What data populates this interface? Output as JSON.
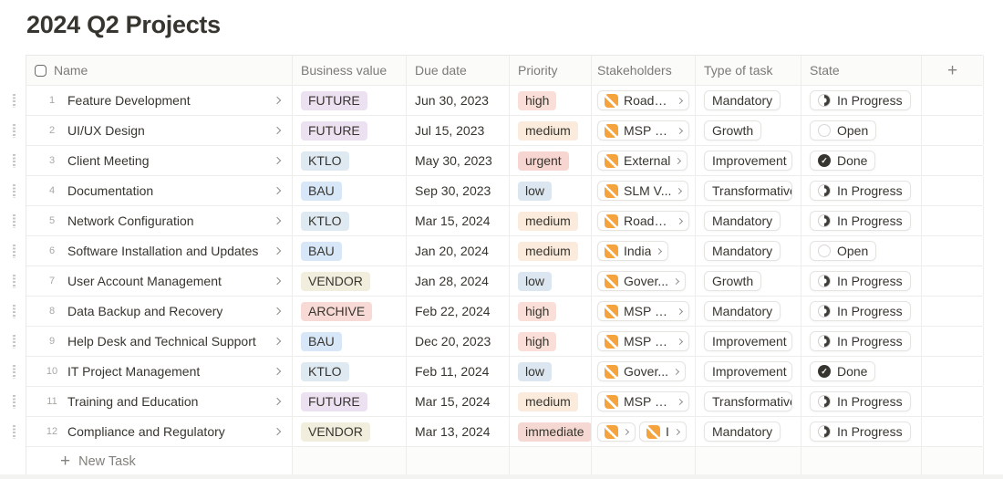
{
  "page": {
    "title": "2024 Q2 Projects"
  },
  "table": {
    "columns": [
      "Name",
      "Business value",
      "Due date",
      "Priority",
      "Stakeholders",
      "Type of task",
      "State"
    ],
    "add_column_label": "+",
    "new_task_plus": "+",
    "new_task_label": "New Task",
    "colors": {
      "text": "#37352F",
      "secondary_text": "#7C7A77",
      "border": "#E9E9E7",
      "stakeholder_icon_orange": "#F5A33C",
      "state_dark": "#373530",
      "business_value": {
        "FUTURE": "#ECE1F1",
        "KTLO": "#DFE9F1",
        "BAU": "#D7E7F8",
        "VENDOR": "#F2EEDD",
        "ARCHIVE": "#F7DAD5"
      },
      "priority": {
        "high": "#F9DFD7",
        "medium": "#FAEBDC",
        "urgent": "#F7D5D1",
        "low": "#DBE6F0",
        "immediate": "#F6D8D3"
      }
    },
    "state_icons": {
      "In Progress": "in-progress",
      "Open": "open",
      "Done": "done"
    },
    "done_check_glyph": "✓",
    "rows": [
      {
        "number": "1",
        "name": "Feature Development",
        "business_value": "FUTURE",
        "due_date": "Jun 30, 2023",
        "priority": "high",
        "stakeholders": [
          {
            "label": "Roads ..."
          }
        ],
        "type_of_task": "Mandatory",
        "state": "In Progress"
      },
      {
        "number": "2",
        "name": "UI/UX Design",
        "business_value": "FUTURE",
        "due_date": "Jul 15, 2023",
        "priority": "medium",
        "stakeholders": [
          {
            "label": "MSP S..."
          }
        ],
        "type_of_task": "Growth",
        "state": "Open"
      },
      {
        "number": "3",
        "name": "Client Meeting",
        "business_value": "KTLO",
        "due_date": "May 30, 2023",
        "priority": "urgent",
        "stakeholders": [
          {
            "label": "External"
          }
        ],
        "type_of_task": "Improvement",
        "state": "Done"
      },
      {
        "number": "4",
        "name": "Documentation",
        "business_value": "BAU",
        "due_date": "Sep 30, 2023",
        "priority": "low",
        "stakeholders": [
          {
            "label": "SLM V..."
          }
        ],
        "type_of_task": "Transformative",
        "state": "In Progress"
      },
      {
        "number": "5",
        "name": "Network Configuration",
        "business_value": "KTLO",
        "due_date": "Mar 15, 2024",
        "priority": "medium",
        "stakeholders": [
          {
            "label": "Roads ..."
          }
        ],
        "type_of_task": "Mandatory",
        "state": "In Progress"
      },
      {
        "number": "6",
        "name": "Software Installation and Updates",
        "business_value": "BAU",
        "due_date": "Jan 20, 2024",
        "priority": "medium",
        "stakeholders": [
          {
            "label": "India"
          }
        ],
        "type_of_task": "Mandatory",
        "state": "Open"
      },
      {
        "number": "7",
        "name": "User Account Management",
        "business_value": "VENDOR",
        "due_date": "Jan 28, 2024",
        "priority": "low",
        "stakeholders": [
          {
            "label": "Gover..."
          }
        ],
        "type_of_task": "Growth",
        "state": "In Progress"
      },
      {
        "number": "8",
        "name": "Data Backup and Recovery",
        "business_value": "ARCHIVE",
        "due_date": "Feb 22, 2024",
        "priority": "high",
        "stakeholders": [
          {
            "label": "MSP S..."
          }
        ],
        "type_of_task": "Mandatory",
        "state": "In Progress"
      },
      {
        "number": "9",
        "name": "Help Desk and Technical Support",
        "business_value": "BAU",
        "due_date": "Dec 20, 2023",
        "priority": "high",
        "stakeholders": [
          {
            "label": "MSP S..."
          }
        ],
        "type_of_task": "Improvement",
        "state": "In Progress"
      },
      {
        "number": "10",
        "name": "IT Project Management",
        "business_value": "KTLO",
        "due_date": "Feb 11, 2024",
        "priority": "low",
        "stakeholders": [
          {
            "label": "Gover..."
          }
        ],
        "type_of_task": "Improvement",
        "state": "Done"
      },
      {
        "number": "11",
        "name": "Training and Education",
        "business_value": "FUTURE",
        "due_date": "Mar 15, 2024",
        "priority": "medium",
        "stakeholders": [
          {
            "label": "MSP S..."
          }
        ],
        "type_of_task": "Transformative",
        "state": "In Progress"
      },
      {
        "number": "12",
        "name": "Compliance and Regulatory",
        "business_value": "VENDOR",
        "due_date": "Mar 13, 2024",
        "priority": "immediate",
        "stakeholders": [
          {
            "label": ""
          },
          {
            "label": "I"
          }
        ],
        "type_of_task": "Mandatory",
        "state": "In Progress"
      }
    ]
  }
}
